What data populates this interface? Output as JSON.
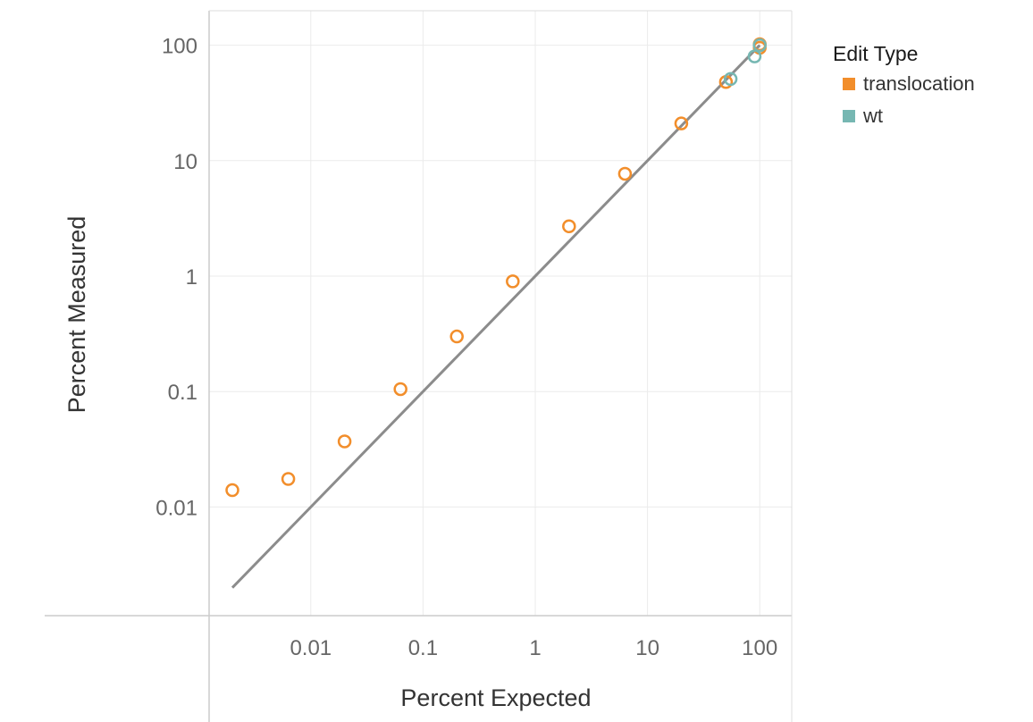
{
  "chart_data": {
    "type": "scatter",
    "x_scale": "log",
    "y_scale": "log",
    "xlabel": "Percent Expected",
    "ylabel": "Percent Measured",
    "xlim": [
      0.002,
      100
    ],
    "ylim": [
      0.001,
      100
    ],
    "x_ticks": [
      0.01,
      0.1,
      1,
      10,
      100
    ],
    "x_tick_labels": [
      "0.01",
      "0.1",
      "1",
      "10",
      "100"
    ],
    "y_ticks": [
      0.01,
      0.1,
      1,
      10,
      100
    ],
    "y_tick_labels": [
      "0.01",
      "0.1",
      "1",
      "10",
      "100"
    ],
    "grid": true,
    "legend": {
      "title": "Edit Type",
      "placement": "right",
      "entries": [
        {
          "label": "translocation",
          "color": "#f28e2b"
        },
        {
          "label": "wt",
          "color": "#76b7b2"
        }
      ]
    },
    "series": [
      {
        "name": "translocation",
        "color": "#f28e2b",
        "x": [
          0.002,
          0.0063,
          0.02,
          0.063,
          0.2,
          0.63,
          2,
          6.3,
          20,
          50,
          100,
          100
        ],
        "y": [
          0.014,
          0.0175,
          0.037,
          0.105,
          0.3,
          0.9,
          2.7,
          7.7,
          21,
          48,
          95,
          102
        ]
      },
      {
        "name": "wt",
        "color": "#76b7b2",
        "x": [
          55,
          90,
          100
        ],
        "y": [
          51,
          80,
          100
        ]
      }
    ],
    "reference_line": {
      "x": [
        0.002,
        100
      ],
      "y": [
        0.002,
        100
      ],
      "color": "#8c8c8c"
    }
  }
}
